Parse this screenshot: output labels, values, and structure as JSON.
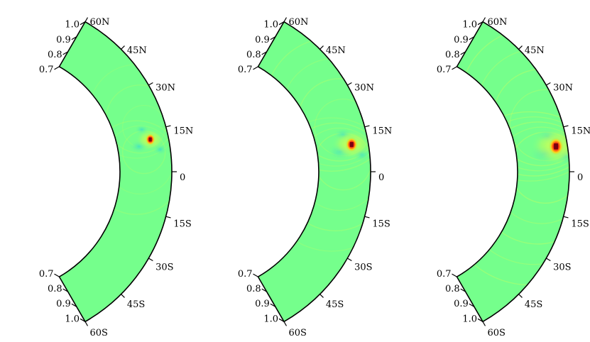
{
  "panels": [
    {
      "name": "panel-1",
      "spot_intensity": "low"
    },
    {
      "name": "panel-2",
      "spot_intensity": "medium"
    },
    {
      "name": "panel-3",
      "spot_intensity": "high"
    }
  ],
  "latitude_ticks": [
    "60N",
    "45N",
    "30N",
    "15N",
    "0",
    "15S",
    "30S",
    "45S",
    "60S"
  ],
  "radius_ticks": [
    "0.7",
    "0.8",
    "0.9",
    "1.0"
  ],
  "colors": {
    "background_field": "#75ff8c",
    "outline": "#000000",
    "spot_core": "#7a0010",
    "spot_ring": "#ff2a10",
    "halo": "#ffe100",
    "cyan_lobe": "#40e6c8"
  }
}
